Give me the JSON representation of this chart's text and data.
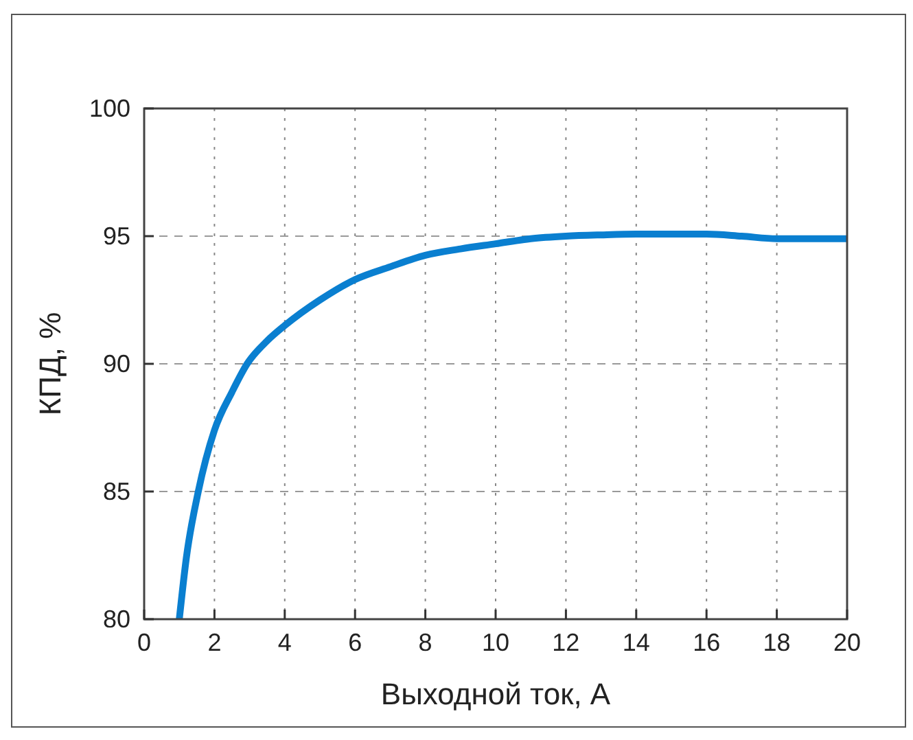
{
  "chart_data": {
    "type": "line",
    "xlabel": "Выходной ток, А",
    "ylabel": "КПД, %",
    "x": [
      1.0,
      1.2,
      1.54,
      2,
      2.5,
      2.93,
      3.5,
      4,
      5,
      6,
      7,
      8,
      9,
      10,
      11,
      12,
      13,
      14,
      16,
      17,
      18,
      20
    ],
    "series": [
      {
        "color": "#0a7fd0",
        "values": [
          80,
          82.4,
          85,
          87.4,
          88.9,
          90,
          90.9,
          91.5,
          92.5,
          93.3,
          93.8,
          94.25,
          94.5,
          94.7,
          94.9,
          95,
          95.05,
          95.08,
          95.08,
          95,
          94.9,
          94.9
        ]
      }
    ],
    "xlim": [
      0,
      20
    ],
    "xticks": [
      0,
      2,
      4,
      6,
      8,
      10,
      12,
      14,
      16,
      18,
      20
    ],
    "ylim": [
      80,
      100
    ],
    "yticks": [
      80,
      85,
      90,
      95,
      100
    ],
    "grid": true,
    "marker": "none",
    "line_style": "solid"
  }
}
